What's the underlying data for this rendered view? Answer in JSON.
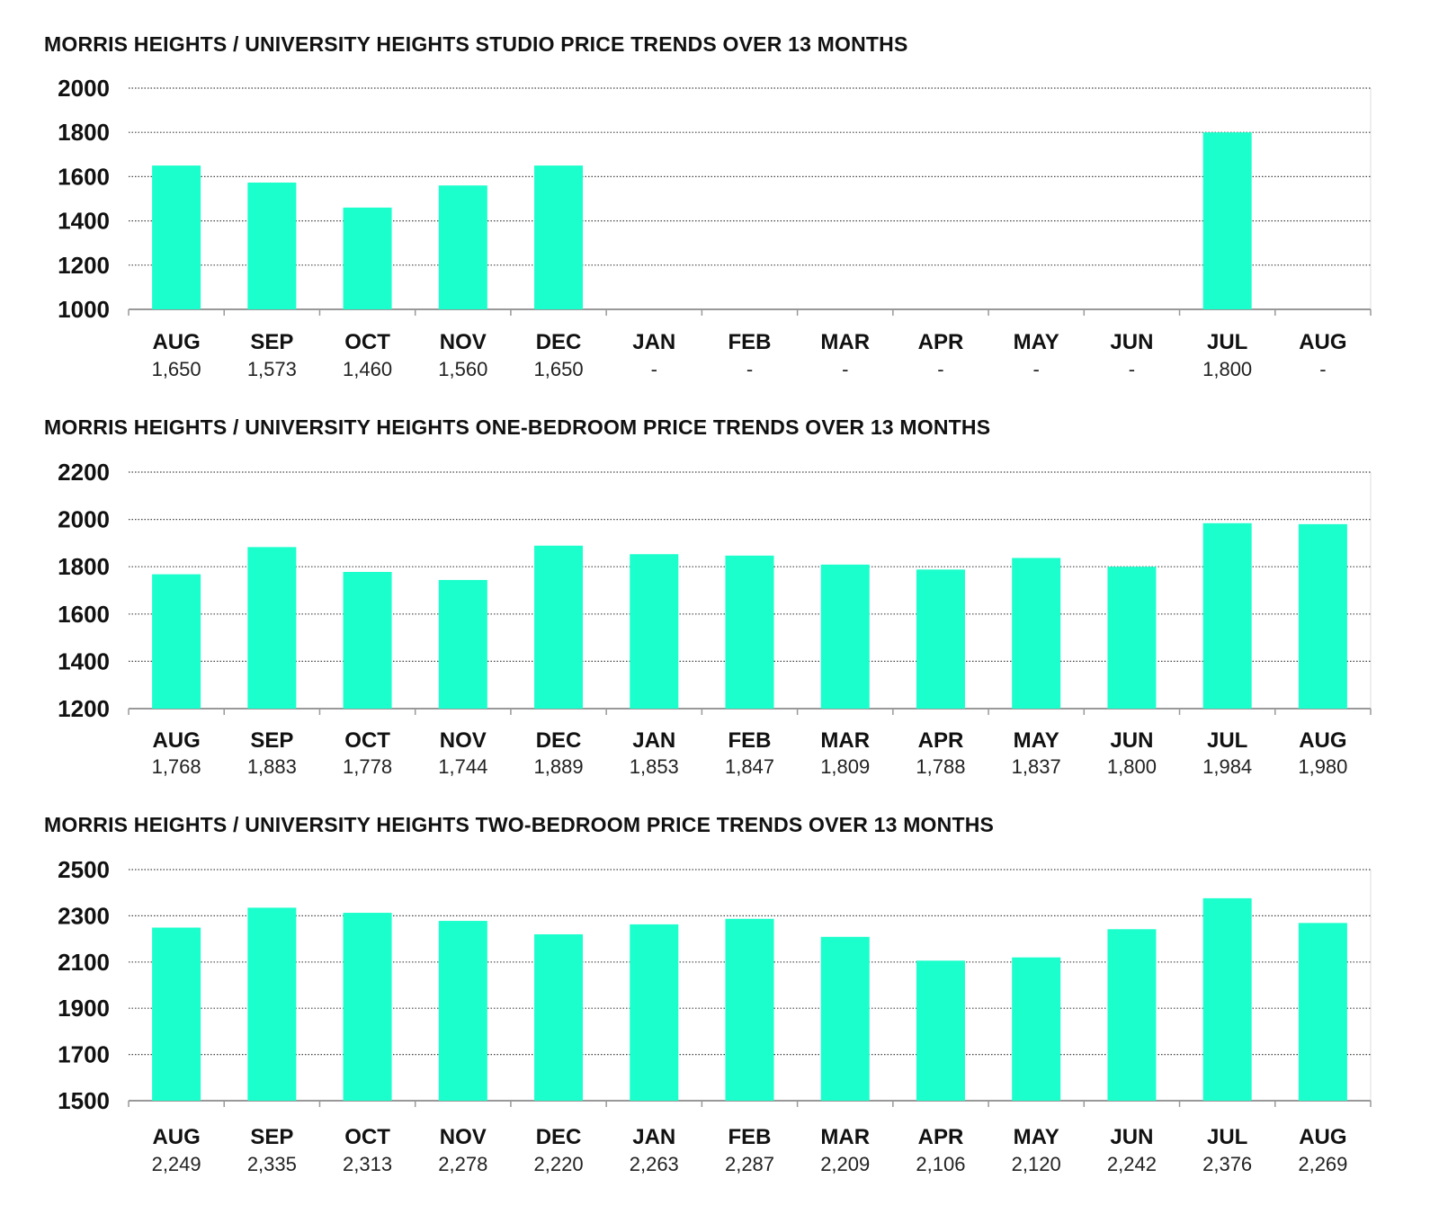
{
  "chart_data": [
    {
      "type": "bar",
      "title": "MORRIS HEIGHTS / UNIVERSITY HEIGHTS STUDIO PRICE TRENDS OVER 13 MONTHS",
      "categories": [
        "AUG",
        "SEP",
        "OCT",
        "NOV",
        "DEC",
        "JAN",
        "FEB",
        "MAR",
        "APR",
        "MAY",
        "JUN",
        "JUL",
        "AUG"
      ],
      "values": [
        1650,
        1573,
        1460,
        1560,
        1650,
        null,
        null,
        null,
        null,
        null,
        null,
        1800,
        null
      ],
      "value_labels": [
        "1,650",
        "1,573",
        "1,460",
        "1,560",
        "1,650",
        "-",
        "-",
        "-",
        "-",
        "-",
        "-",
        "1,800",
        "-"
      ],
      "ylim": [
        1000,
        2000
      ],
      "yticks": [
        "2000",
        "1800",
        "1600",
        "1400",
        "1200",
        "1000"
      ],
      "bar_color": "#1affcb",
      "grid": true
    },
    {
      "type": "bar",
      "title": "MORRIS HEIGHTS / UNIVERSITY HEIGHTS ONE-BEDROOM PRICE TRENDS OVER 13 MONTHS",
      "categories": [
        "AUG",
        "SEP",
        "OCT",
        "NOV",
        "DEC",
        "JAN",
        "FEB",
        "MAR",
        "APR",
        "MAY",
        "JUN",
        "JUL",
        "AUG"
      ],
      "values": [
        1768,
        1883,
        1778,
        1744,
        1889,
        1853,
        1847,
        1809,
        1788,
        1837,
        1800,
        1984,
        1980
      ],
      "value_labels": [
        "1,768",
        "1,883",
        "1,778",
        "1,744",
        "1,889",
        "1,853",
        "1,847",
        "1,809",
        "1,788",
        "1,837",
        "1,800",
        "1,984",
        "1,980"
      ],
      "ylim": [
        1200,
        2200
      ],
      "yticks": [
        "2200",
        "2000",
        "1800",
        "1600",
        "1400",
        "1200"
      ],
      "bar_color": "#1affcb",
      "grid": true
    },
    {
      "type": "bar",
      "title": "MORRIS HEIGHTS / UNIVERSITY HEIGHTS TWO-BEDROOM PRICE TRENDS OVER 13 MONTHS",
      "categories": [
        "AUG",
        "SEP",
        "OCT",
        "NOV",
        "DEC",
        "JAN",
        "FEB",
        "MAR",
        "APR",
        "MAY",
        "JUN",
        "JUL",
        "AUG"
      ],
      "values": [
        2249,
        2335,
        2313,
        2278,
        2220,
        2263,
        2287,
        2209,
        2106,
        2120,
        2242,
        2376,
        2269
      ],
      "value_labels": [
        "2,249",
        "2,335",
        "2,313",
        "2,278",
        "2,220",
        "2,263",
        "2,287",
        "2,209",
        "2,106",
        "2,120",
        "2,242",
        "2,376",
        "2,269"
      ],
      "ylim": [
        1500,
        2500
      ],
      "yticks": [
        "2500",
        "2300",
        "2100",
        "1900",
        "1700",
        "1500"
      ],
      "bar_color": "#1affcb",
      "grid": true
    }
  ]
}
